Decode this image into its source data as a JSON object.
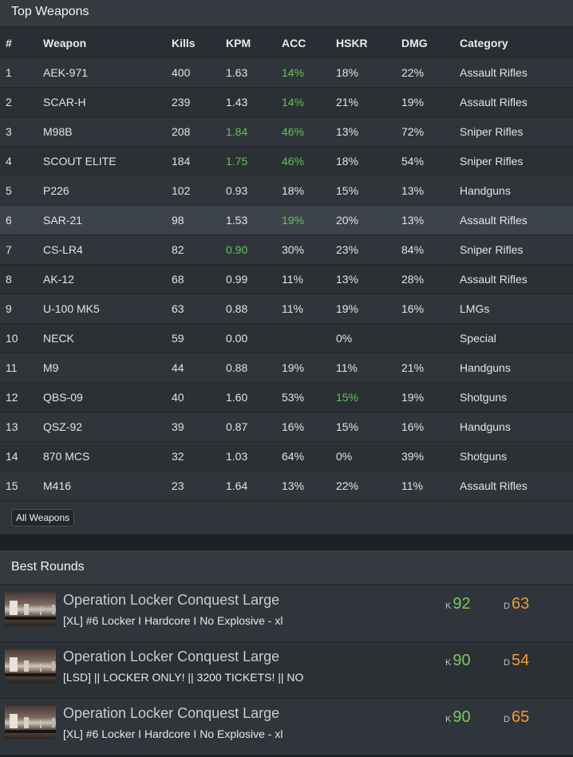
{
  "weapons": {
    "title": "Top Weapons",
    "columns": [
      "#",
      "Weapon",
      "Kills",
      "KPM",
      "ACC",
      "HSKR",
      "DMG",
      "Category"
    ],
    "rows": [
      {
        "rank": "1",
        "weapon": "AEK-971",
        "kills": "400",
        "kpm": "1.63",
        "acc": "14%",
        "hskr": "18%",
        "dmg": "22%",
        "category": "Assault Rifles"
      },
      {
        "rank": "2",
        "weapon": "SCAR-H",
        "kills": "239",
        "kpm": "1.43",
        "acc": "14%",
        "hskr": "21%",
        "dmg": "19%",
        "category": "Assault Rifles"
      },
      {
        "rank": "3",
        "weapon": "M98B",
        "kills": "208",
        "kpm": "1.84",
        "acc": "46%",
        "hskr": "13%",
        "dmg": "72%",
        "category": "Sniper Rifles"
      },
      {
        "rank": "4",
        "weapon": "SCOUT ELITE",
        "kills": "184",
        "kpm": "1.75",
        "acc": "46%",
        "hskr": "18%",
        "dmg": "54%",
        "category": "Sniper Rifles"
      },
      {
        "rank": "5",
        "weapon": "P226",
        "kills": "102",
        "kpm": "0.93",
        "acc": "18%",
        "hskr": "15%",
        "dmg": "13%",
        "category": "Handguns"
      },
      {
        "rank": "6",
        "weapon": "SAR-21",
        "kills": "98",
        "kpm": "1.53",
        "acc": "19%",
        "hskr": "20%",
        "dmg": "13%",
        "category": "Assault Rifles"
      },
      {
        "rank": "7",
        "weapon": "CS-LR4",
        "kills": "82",
        "kpm": "0.90",
        "acc": "30%",
        "hskr": "23%",
        "dmg": "84%",
        "category": "Sniper Rifles"
      },
      {
        "rank": "8",
        "weapon": "AK-12",
        "kills": "68",
        "kpm": "0.99",
        "acc": "11%",
        "hskr": "13%",
        "dmg": "28%",
        "category": "Assault Rifles"
      },
      {
        "rank": "9",
        "weapon": "U-100 MK5",
        "kills": "63",
        "kpm": "0.88",
        "acc": "11%",
        "hskr": "19%",
        "dmg": "16%",
        "category": "LMGs"
      },
      {
        "rank": "10",
        "weapon": "NECK",
        "kills": "59",
        "kpm": "0.00",
        "acc": "",
        "hskr": "0%",
        "dmg": "",
        "category": "Special"
      },
      {
        "rank": "11",
        "weapon": "M9",
        "kills": "44",
        "kpm": "0.88",
        "acc": "19%",
        "hskr": "11%",
        "dmg": "21%",
        "category": "Handguns"
      },
      {
        "rank": "12",
        "weapon": "QBS-09",
        "kills": "40",
        "kpm": "1.60",
        "acc": "53%",
        "hskr": "15%",
        "dmg": "19%",
        "category": "Shotguns"
      },
      {
        "rank": "13",
        "weapon": "QSZ-92",
        "kills": "39",
        "kpm": "0.87",
        "acc": "16%",
        "hskr": "15%",
        "dmg": "16%",
        "category": "Handguns"
      },
      {
        "rank": "14",
        "weapon": "870 MCS",
        "kills": "32",
        "kpm": "1.03",
        "acc": "64%",
        "hskr": "0%",
        "dmg": "39%",
        "category": "Shotguns"
      },
      {
        "rank": "15",
        "weapon": "M416",
        "kills": "23",
        "kpm": "1.64",
        "acc": "13%",
        "hskr": "22%",
        "dmg": "11%",
        "category": "Assault Rifles"
      }
    ],
    "all_button_label": "All Weapons"
  },
  "rounds": {
    "title": "Best Rounds",
    "kill_label": "K",
    "death_label": "D",
    "items": [
      {
        "map": "Operation Locker Conquest Large",
        "server": "[XL] #6 Locker I Hardcore I No Explosive - xl",
        "kills": "92",
        "deaths": "63"
      },
      {
        "map": "Operation Locker Conquest Large",
        "server": "[LSD] || LOCKER ONLY! || 3200 TICKETS! || NO",
        "kills": "90",
        "deaths": "54"
      },
      {
        "map": "Operation Locker Conquest Large",
        "server": "[XL] #6 Locker I Hardcore I No Explosive - xl",
        "kills": "90",
        "deaths": "65"
      }
    ]
  },
  "colors": {
    "highlight_green": "#64c256",
    "kills_green": "#78c860",
    "deaths_orange": "#f09a2e"
  }
}
